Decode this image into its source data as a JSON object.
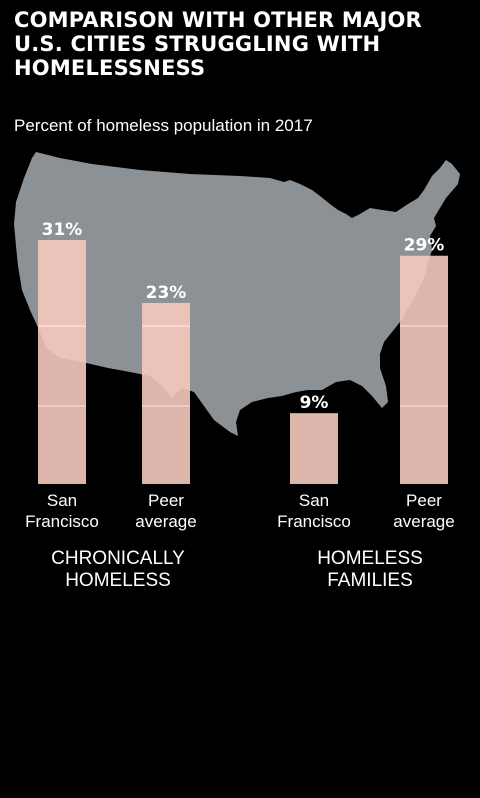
{
  "title": "COMPARISON WITH OTHER MAJOR U.S. CITIES STRUGGLING WITH HOMELESSNESS",
  "subtitle": "Percent of homeless population in 2017",
  "colors": {
    "background": "#000000",
    "map": "#8c9195",
    "bar": "#f5c9bd",
    "text": "#ffffff"
  },
  "chart_data": {
    "type": "bar",
    "ylim": [
      0,
      31
    ],
    "groups": [
      {
        "label": "CHRONICALLY HOMELESS",
        "label_lines": [
          "CHRONICALLY",
          "HOMELESS"
        ],
        "bars": [
          {
            "category": "San Francisco",
            "category_lines": [
              "San",
              "Francisco"
            ],
            "value": 31,
            "value_label": "31%"
          },
          {
            "category": "Peer average",
            "category_lines": [
              "Peer",
              "average"
            ],
            "value": 23,
            "value_label": "23%"
          }
        ]
      },
      {
        "label": "HOMELESS FAMILIES",
        "label_lines": [
          "HOMELESS",
          "FAMILIES"
        ],
        "bars": [
          {
            "category": "San Francisco",
            "category_lines": [
              "San",
              "Francisco"
            ],
            "value": 9,
            "value_label": "9%"
          },
          {
            "category": "Peer average",
            "category_lines": [
              "Peer",
              "average"
            ],
            "value": 29,
            "value_label": "29%"
          }
        ]
      }
    ],
    "grid": true,
    "background_graphic": "us-map"
  }
}
